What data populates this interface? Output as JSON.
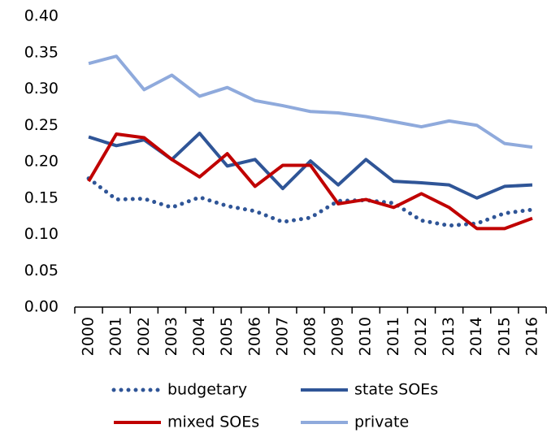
{
  "chart_data": {
    "type": "line",
    "categories": [
      "2000",
      "2001",
      "2002",
      "2003",
      "2004",
      "2005",
      "2006",
      "2007",
      "2008",
      "2009",
      "2010",
      "2011",
      "2012",
      "2013",
      "2014",
      "2015",
      "2016"
    ],
    "series": [
      {
        "name": "budgetary",
        "color": "#2f5597",
        "dash": "dotted",
        "values": [
          0.177,
          0.148,
          0.149,
          0.137,
          0.151,
          0.139,
          0.132,
          0.117,
          0.123,
          0.146,
          0.147,
          0.143,
          0.119,
          0.112,
          0.115,
          0.129,
          0.134
        ]
      },
      {
        "name": "state SOEs",
        "color": "#2f5597",
        "dash": "solid",
        "values": [
          0.234,
          0.222,
          0.23,
          0.203,
          0.239,
          0.194,
          0.203,
          0.163,
          0.201,
          0.168,
          0.203,
          0.173,
          0.171,
          0.168,
          0.15,
          0.166,
          0.168
        ]
      },
      {
        "name": "mixed SOEs",
        "color": "#c00000",
        "dash": "solid",
        "values": [
          0.173,
          0.238,
          0.233,
          0.203,
          0.179,
          0.211,
          0.166,
          0.195,
          0.195,
          0.142,
          0.148,
          0.137,
          0.156,
          0.137,
          0.108,
          0.108,
          0.122
        ]
      },
      {
        "name": "private",
        "color": "#8faadc",
        "dash": "solid",
        "values": [
          0.335,
          0.345,
          0.299,
          0.319,
          0.29,
          0.302,
          0.284,
          0.277,
          0.269,
          0.267,
          0.262,
          0.255,
          0.248,
          0.256,
          0.25,
          0.225,
          0.22
        ]
      }
    ],
    "ylim": [
      0,
      0.4
    ],
    "yticks": [
      {
        "value": 0,
        "label": "0.00"
      },
      {
        "value": 0.05,
        "label": "0.05"
      },
      {
        "value": 0.1,
        "label": "0.10"
      },
      {
        "value": 0.15,
        "label": "0.15"
      },
      {
        "value": 0.2,
        "label": "0.20"
      },
      {
        "value": 0.25,
        "label": "0.25"
      },
      {
        "value": 0.3,
        "label": "0.30"
      },
      {
        "value": 0.35,
        "label": "0.35"
      },
      {
        "value": 0.4,
        "label": "0.40"
      }
    ],
    "grid": false,
    "legend": "bottom"
  }
}
